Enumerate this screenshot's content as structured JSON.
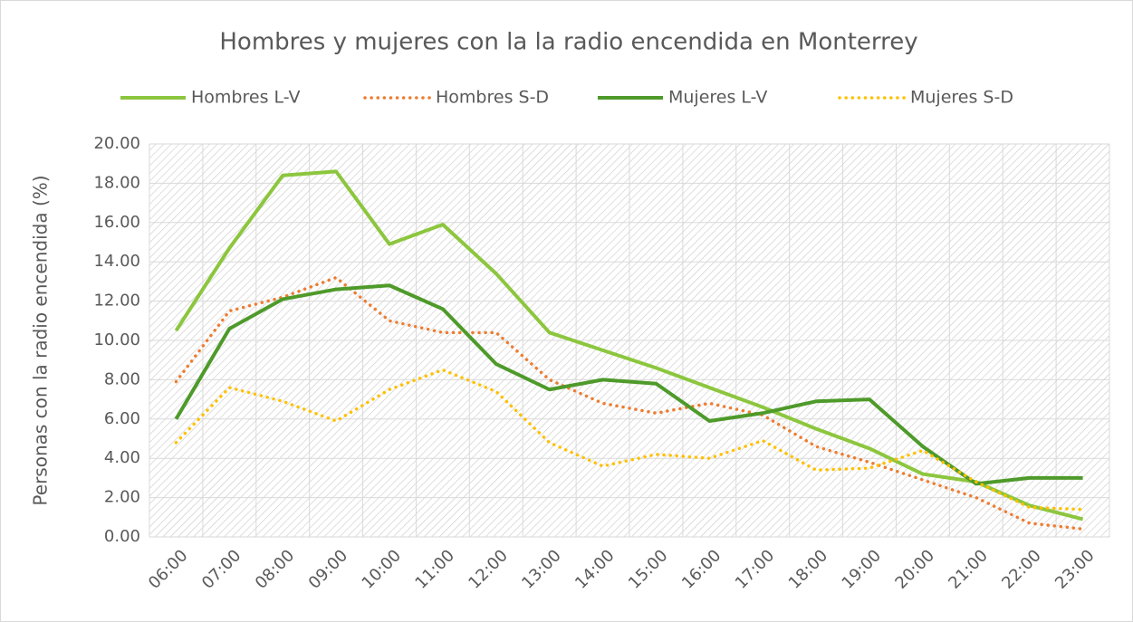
{
  "chart_data": {
    "type": "line",
    "title": "Hombres y mujeres con la la radio encendida en Monterrey",
    "y_label": "Personas con la radio encendida (%)",
    "categories": [
      "06:00",
      "07:00",
      "08:00",
      "09:00",
      "10:00",
      "11:00",
      "12:00",
      "13:00",
      "14:00",
      "15:00",
      "16:00",
      "17:00",
      "18:00",
      "19:00",
      "20:00",
      "21:00",
      "22:00",
      "23:00"
    ],
    "series": [
      {
        "name": "Hombres L-V",
        "color": "#8cc63e",
        "dash": false,
        "values": [
          10.5,
          14.7,
          18.4,
          18.6,
          14.9,
          15.9,
          13.4,
          10.4,
          9.5,
          8.6,
          7.6,
          6.6,
          5.5,
          4.5,
          3.2,
          2.8,
          1.6,
          0.9
        ]
      },
      {
        "name": "Hombres S-D",
        "color": "#ed7d31",
        "dash": true,
        "values": [
          7.9,
          11.5,
          12.2,
          13.2,
          11.0,
          10.4,
          10.4,
          8.0,
          6.8,
          6.3,
          6.8,
          6.2,
          4.6,
          3.8,
          2.9,
          2.0,
          0.7,
          0.4
        ]
      },
      {
        "name": "Mujeres L-V",
        "color": "#4e9a2a",
        "dash": false,
        "values": [
          6.0,
          10.6,
          12.1,
          12.6,
          12.8,
          11.6,
          8.8,
          7.5,
          8.0,
          7.8,
          5.9,
          6.3,
          6.9,
          7.0,
          4.6,
          2.7,
          3.0,
          3.0
        ]
      },
      {
        "name": "Mujeres S-D",
        "color": "#ffc000",
        "dash": true,
        "values": [
          4.8,
          7.6,
          6.9,
          5.9,
          7.5,
          8.5,
          7.4,
          4.8,
          3.6,
          4.2,
          4.0,
          4.9,
          3.4,
          3.5,
          4.4,
          2.8,
          1.5,
          1.4
        ]
      }
    ],
    "ylim": [
      0,
      20
    ],
    "yticks": [
      {
        "value": 0,
        "label": "0.00"
      },
      {
        "value": 2,
        "label": "2.00"
      },
      {
        "value": 4,
        "label": "4.00"
      },
      {
        "value": 6,
        "label": "6.00"
      },
      {
        "value": 8,
        "label": "8.00"
      },
      {
        "value": 10,
        "label": "10.00"
      },
      {
        "value": 12,
        "label": "12.00"
      },
      {
        "value": 14,
        "label": "14.00"
      },
      {
        "value": 16,
        "label": "16.00"
      },
      {
        "value": 18,
        "label": "18.00"
      },
      {
        "value": 20,
        "label": "20.00"
      }
    ],
    "grid": true,
    "legend": "top"
  }
}
